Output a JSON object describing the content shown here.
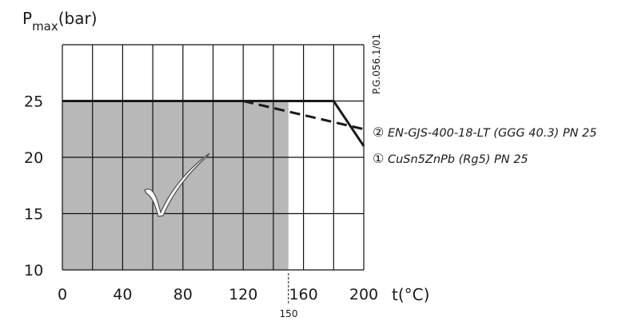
{
  "chart_data": {
    "type": "line",
    "y_title_main": "P",
    "y_title_sub": "max",
    "y_title_unit": "(bar)",
    "x_title": "t(°C)",
    "doc_code": "P.G.056.1/01",
    "xlim": [
      0,
      200
    ],
    "ylim": [
      10,
      30
    ],
    "x_grid_step": 20,
    "y_grid_step": 5,
    "x_ticks": [
      0,
      40,
      80,
      120,
      160,
      200
    ],
    "y_ticks": [
      10,
      15,
      20,
      25
    ],
    "extra_x_label": {
      "value": 150,
      "text": "150"
    },
    "shaded_region": {
      "x": [
        0,
        150
      ],
      "y": [
        10,
        25
      ]
    },
    "series": [
      {
        "id": "1",
        "marker": "①",
        "name": "CuSn5ZnPb (Rg5) PN 25",
        "style": "solid",
        "x": [
          0,
          180,
          200
        ],
        "y": [
          25,
          25,
          21
        ]
      },
      {
        "id": "2",
        "marker": "②",
        "name": "EN-GJS-400-18-LT (GGG 40.3) PN 25",
        "style": "dashed",
        "x": [
          120,
          200
        ],
        "y": [
          25,
          22.5
        ]
      }
    ],
    "grid": true
  }
}
